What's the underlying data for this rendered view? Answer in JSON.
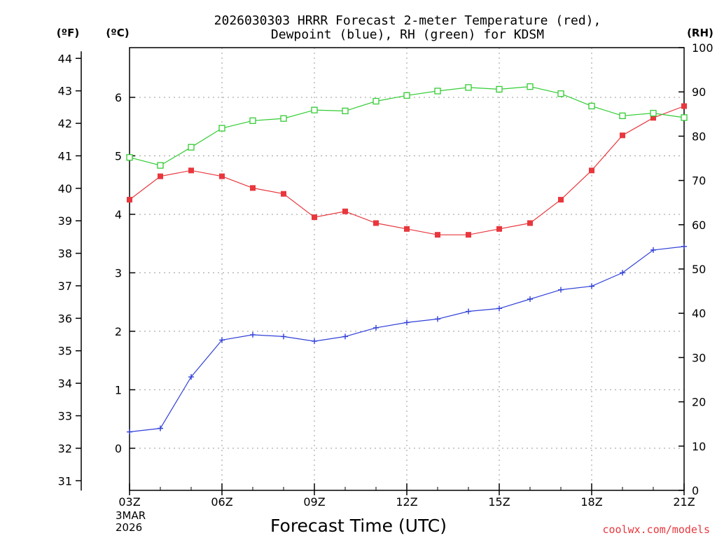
{
  "chart_data": {
    "type": "line",
    "title_line1": "2026030303 HRRR Forecast 2-meter Temperature (red),",
    "title_line2": "Dewpoint (blue), RH (green) for KDSM",
    "xlabel": "Forecast Time (UTC)",
    "x_hours": [
      3,
      4,
      5,
      6,
      7,
      8,
      9,
      10,
      11,
      12,
      13,
      14,
      15,
      16,
      17,
      18,
      19,
      20,
      21
    ],
    "xlim": [
      3,
      21
    ],
    "x_tick_labels": [
      "03Z",
      "06Z",
      "09Z",
      "12Z",
      "15Z",
      "18Z",
      "21Z"
    ],
    "x_tick_hours": [
      3,
      6,
      9,
      12,
      15,
      18,
      21
    ],
    "date_label_line1": "3MAR",
    "date_label_line2": "2026",
    "axis_f": {
      "unit_label": "(ºF)",
      "ticks": [
        31,
        32,
        33,
        34,
        35,
        36,
        37,
        38,
        39,
        40,
        41,
        42,
        43,
        44
      ]
    },
    "axis_c": {
      "unit_label": "(ºC)",
      "ylim": [
        -0.72,
        6.85
      ],
      "ticks": [
        0,
        1,
        2,
        3,
        4,
        5,
        6
      ]
    },
    "axis_rh": {
      "unit_label": "(RH)",
      "ylim": [
        0,
        100
      ],
      "ticks": [
        0,
        10,
        20,
        30,
        40,
        50,
        60,
        70,
        80,
        90,
        100
      ]
    },
    "series": [
      {
        "name": "2-meter Temperature",
        "color": "#e8373d",
        "marker": "filled-square",
        "axis": "c",
        "values": [
          4.25,
          4.65,
          4.75,
          4.65,
          4.45,
          4.35,
          3.95,
          4.05,
          3.85,
          3.75,
          3.65,
          3.65,
          3.75,
          3.85,
          4.25,
          4.75,
          5.35,
          5.65,
          5.85
        ]
      },
      {
        "name": "Dewpoint",
        "color": "#3040d8",
        "marker": "plus",
        "axis": "c",
        "values": [
          0.28,
          0.34,
          1.22,
          1.85,
          1.94,
          1.91,
          1.83,
          1.91,
          2.06,
          2.15,
          2.21,
          2.34,
          2.39,
          2.55,
          2.71,
          2.77,
          3.0,
          3.39,
          3.45
        ]
      },
      {
        "name": "RH",
        "color": "#33cc33",
        "marker": "open-square",
        "axis": "rh",
        "values": [
          75.2,
          73.4,
          77.5,
          81.8,
          83.5,
          84.0,
          85.9,
          85.7,
          87.9,
          89.2,
          90.2,
          91.0,
          90.6,
          91.2,
          89.6,
          86.8,
          84.6,
          85.2,
          84.2
        ]
      }
    ],
    "credit": "coolwx.com/models"
  }
}
